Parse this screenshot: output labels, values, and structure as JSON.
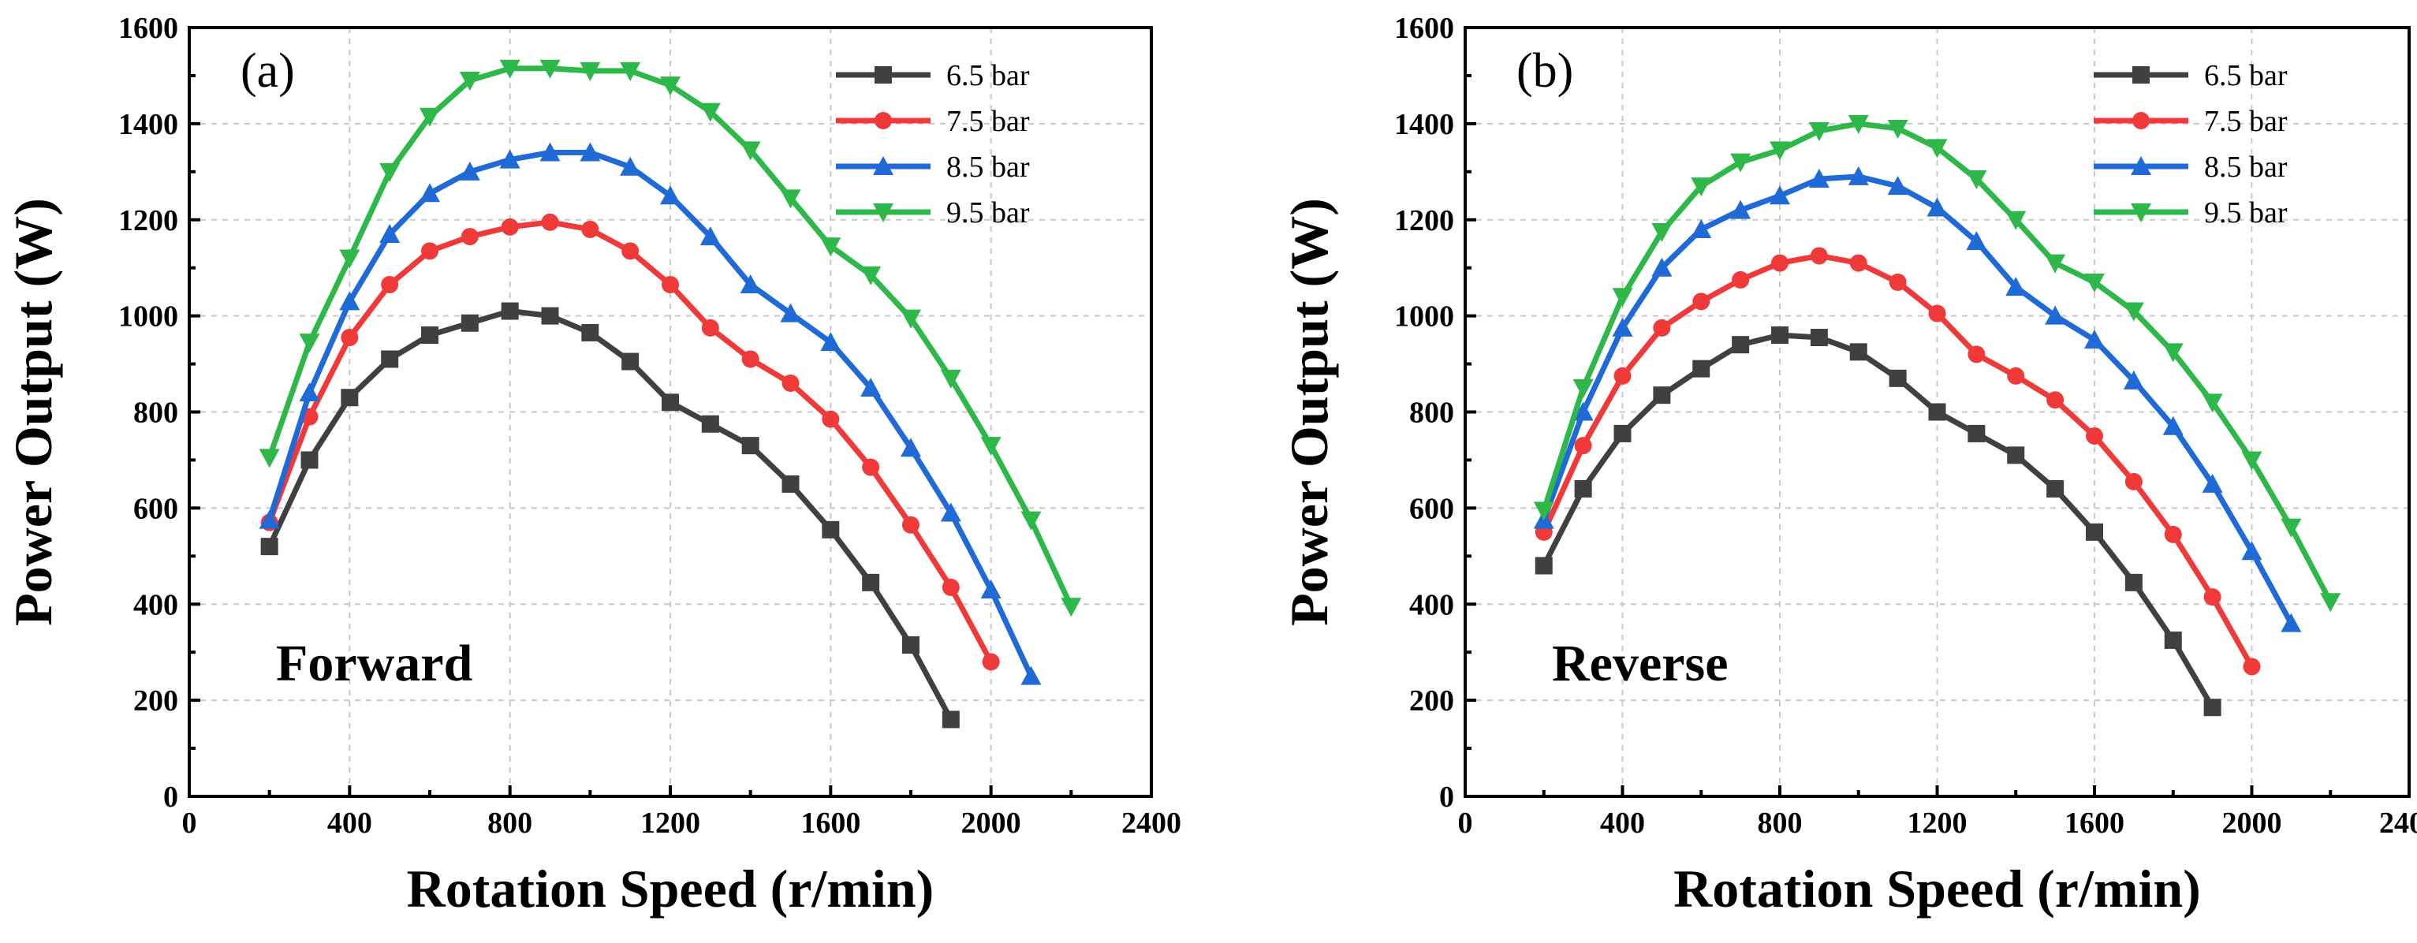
{
  "chart_data": [
    {
      "type": "line",
      "panel_label": "(a)",
      "annotation": "Forward",
      "xlabel": "Rotation Speed (r/min)",
      "ylabel": "Power Output (W)",
      "xlim": [
        0,
        2400
      ],
      "ylim": [
        0,
        1600
      ],
      "xticks": [
        0,
        400,
        800,
        1200,
        1600,
        2000,
        2400
      ],
      "yticks": [
        0,
        200,
        400,
        600,
        800,
        1000,
        1200,
        1400,
        1600
      ],
      "grid": true,
      "legend_position": "top-right",
      "series": [
        {
          "name": "6.5 bar",
          "color": "#404040",
          "marker": "square",
          "x": [
            200,
            300,
            400,
            500,
            600,
            700,
            800,
            900,
            1000,
            1100,
            1200,
            1300,
            1400,
            1500,
            1600,
            1700,
            1800,
            1900
          ],
          "y": [
            520,
            700,
            830,
            910,
            960,
            985,
            1010,
            1000,
            965,
            905,
            820,
            775,
            730,
            650,
            555,
            445,
            315,
            160
          ]
        },
        {
          "name": "7.5 bar",
          "color": "#f03a3a",
          "marker": "circle",
          "x": [
            200,
            300,
            400,
            500,
            600,
            700,
            800,
            900,
            1000,
            1100,
            1200,
            1300,
            1400,
            1500,
            1600,
            1700,
            1800,
            1900,
            2000
          ],
          "y": [
            570,
            790,
            955,
            1065,
            1135,
            1165,
            1185,
            1195,
            1180,
            1135,
            1065,
            975,
            910,
            860,
            785,
            685,
            565,
            435,
            280
          ]
        },
        {
          "name": "8.5 bar",
          "color": "#1f6ad6",
          "marker": "triangle-up",
          "x": [
            200,
            300,
            400,
            500,
            600,
            700,
            800,
            900,
            1000,
            1100,
            1200,
            1300,
            1400,
            1500,
            1600,
            1700,
            1800,
            1900,
            2000,
            2100
          ],
          "y": [
            575,
            840,
            1030,
            1170,
            1255,
            1300,
            1325,
            1340,
            1340,
            1310,
            1250,
            1165,
            1065,
            1005,
            945,
            850,
            725,
            590,
            430,
            250
          ]
        },
        {
          "name": "9.5 bar",
          "color": "#2fb84a",
          "marker": "triangle-down",
          "x": [
            200,
            300,
            400,
            500,
            600,
            700,
            800,
            900,
            1000,
            1100,
            1200,
            1300,
            1400,
            1500,
            1600,
            1700,
            1800,
            1900,
            2000,
            2100,
            2200
          ],
          "y": [
            705,
            945,
            1120,
            1300,
            1415,
            1490,
            1515,
            1515,
            1510,
            1510,
            1480,
            1425,
            1345,
            1245,
            1145,
            1085,
            995,
            870,
            730,
            575,
            395
          ]
        }
      ]
    },
    {
      "type": "line",
      "panel_label": "(b)",
      "annotation": "Reverse",
      "xlabel": "Rotation Speed (r/min)",
      "ylabel": "Power Output (W)",
      "xlim": [
        0,
        2400
      ],
      "ylim": [
        0,
        1600
      ],
      "xticks": [
        0,
        400,
        800,
        1200,
        1600,
        2000,
        2400
      ],
      "yticks": [
        0,
        200,
        400,
        600,
        800,
        1000,
        1200,
        1400,
        1600
      ],
      "grid": true,
      "legend_position": "top-right",
      "series": [
        {
          "name": "6.5 bar",
          "color": "#404040",
          "marker": "square",
          "x": [
            200,
            300,
            400,
            500,
            600,
            700,
            800,
            900,
            1000,
            1100,
            1200,
            1300,
            1400,
            1500,
            1600,
            1700,
            1800,
            1900
          ],
          "y": [
            480,
            640,
            755,
            835,
            890,
            940,
            960,
            955,
            925,
            870,
            800,
            755,
            710,
            640,
            550,
            445,
            325,
            185
          ]
        },
        {
          "name": "7.5 bar",
          "color": "#f03a3a",
          "marker": "circle",
          "x": [
            200,
            300,
            400,
            500,
            600,
            700,
            800,
            900,
            1000,
            1100,
            1200,
            1300,
            1400,
            1500,
            1600,
            1700,
            1800,
            1900,
            2000
          ],
          "y": [
            550,
            730,
            875,
            975,
            1030,
            1075,
            1110,
            1125,
            1110,
            1070,
            1005,
            920,
            875,
            825,
            750,
            655,
            545,
            415,
            270
          ]
        },
        {
          "name": "8.5 bar",
          "color": "#1f6ad6",
          "marker": "triangle-up",
          "x": [
            200,
            300,
            400,
            500,
            600,
            700,
            800,
            900,
            1000,
            1100,
            1200,
            1300,
            1400,
            1500,
            1600,
            1700,
            1800,
            1900,
            2000,
            2100
          ],
          "y": [
            575,
            800,
            975,
            1100,
            1180,
            1220,
            1250,
            1285,
            1290,
            1270,
            1225,
            1155,
            1060,
            1000,
            950,
            865,
            770,
            650,
            510,
            360
          ]
        },
        {
          "name": "9.5 bar",
          "color": "#2fb84a",
          "marker": "triangle-down",
          "x": [
            200,
            300,
            400,
            500,
            600,
            700,
            800,
            900,
            1000,
            1100,
            1200,
            1300,
            1400,
            1500,
            1600,
            1700,
            1800,
            1900,
            2000,
            2100,
            2200
          ],
          "y": [
            595,
            850,
            1040,
            1175,
            1270,
            1320,
            1345,
            1385,
            1400,
            1390,
            1350,
            1285,
            1200,
            1110,
            1070,
            1010,
            925,
            820,
            700,
            560,
            405
          ]
        }
      ]
    }
  ]
}
